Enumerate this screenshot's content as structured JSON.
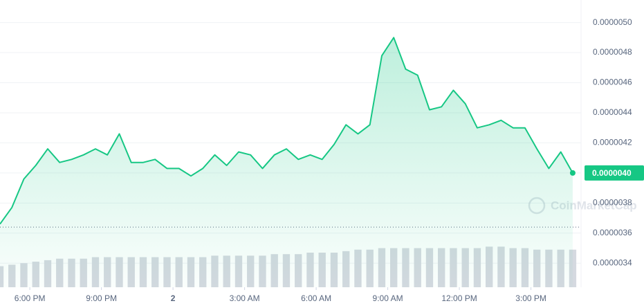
{
  "chart_data": {
    "type": "line",
    "x": [
      16.75,
      17.25,
      17.75,
      18.25,
      18.75,
      19.25,
      19.75,
      20.25,
      20.75,
      21.25,
      21.75,
      22.25,
      22.75,
      23.25,
      23.75,
      24.25,
      24.75,
      25.25,
      25.75,
      26.25,
      26.75,
      27.25,
      27.75,
      28.25,
      28.75,
      29.25,
      29.75,
      30.25,
      30.75,
      31.25,
      31.75,
      32.25,
      32.75,
      33.25,
      33.75,
      34.25,
      34.75,
      35.25,
      35.75,
      36.25,
      36.75,
      37.25,
      37.75,
      38.25,
      38.75,
      39.25,
      39.75,
      40.25,
      40.75
    ],
    "series": [
      {
        "color": "#16c784",
        "values": [
          3.66e-06,
          3.77e-06,
          3.96e-06,
          4.05e-06,
          4.16e-06,
          4.07e-06,
          4.09e-06,
          4.12e-06,
          4.16e-06,
          4.12e-06,
          4.26e-06,
          4.07e-06,
          4.07e-06,
          4.09e-06,
          4.03e-06,
          4.03e-06,
          3.98e-06,
          4.03e-06,
          4.12e-06,
          4.05e-06,
          4.14e-06,
          4.12e-06,
          4.03e-06,
          4.12e-06,
          4.16e-06,
          4.09e-06,
          4.12e-06,
          4.09e-06,
          4.19e-06,
          4.32e-06,
          4.26e-06,
          4.32e-06,
          4.78e-06,
          4.9e-06,
          4.69e-06,
          4.65e-06,
          4.42e-06,
          4.44e-06,
          4.55e-06,
          4.46e-06,
          4.3e-06,
          4.32e-06,
          4.35e-06,
          4.3e-06,
          4.3e-06,
          4.16e-06,
          4.03e-06,
          4.14e-06,
          4e-06
        ]
      }
    ],
    "volume": {
      "color": "#d5d9e0",
      "values": [
        3.38e-06,
        3.39e-06,
        3.4e-06,
        3.41e-06,
        3.42e-06,
        3.43e-06,
        3.43e-06,
        3.43e-06,
        3.44e-06,
        3.44e-06,
        3.44e-06,
        3.44e-06,
        3.44e-06,
        3.44e-06,
        3.44e-06,
        3.44e-06,
        3.44e-06,
        3.44e-06,
        3.45e-06,
        3.45e-06,
        3.45e-06,
        3.45e-06,
        3.45e-06,
        3.46e-06,
        3.46e-06,
        3.46e-06,
        3.47e-06,
        3.47e-06,
        3.47e-06,
        3.48e-06,
        3.49e-06,
        3.49e-06,
        3.5e-06,
        3.5e-06,
        3.5e-06,
        3.5e-06,
        3.5e-06,
        3.5e-06,
        3.5e-06,
        3.5e-06,
        3.5e-06,
        3.51e-06,
        3.51e-06,
        3.5e-06,
        3.5e-06,
        3.49e-06,
        3.49e-06,
        3.49e-06,
        3.49e-06
      ]
    },
    "xlim": [
      16.75,
      41.1
    ],
    "xticks": [
      {
        "value": 18,
        "label": "6:00 PM"
      },
      {
        "value": 21,
        "label": "9:00 PM"
      },
      {
        "value": 24,
        "label": "2"
      },
      {
        "value": 27,
        "label": "3:00 AM"
      },
      {
        "value": 30,
        "label": "6:00 AM"
      },
      {
        "value": 33,
        "label": "9:00 AM"
      },
      {
        "value": 36,
        "label": "12:00 PM"
      },
      {
        "value": 39,
        "label": "3:00 PM"
      }
    ],
    "ylim": [
      3.24e-06,
      5.15e-06
    ],
    "yticks": [
      {
        "value": 3.4e-06,
        "label": "0.0000034"
      },
      {
        "value": 3.6e-06,
        "label": "0.0000036"
      },
      {
        "value": 3.8e-06,
        "label": "0.0000038"
      },
      {
        "value": 4e-06,
        "label": "0.0000040"
      },
      {
        "value": 4.2e-06,
        "label": "0.0000042"
      },
      {
        "value": 4.4e-06,
        "label": "0.0000044"
      },
      {
        "value": 4.6e-06,
        "label": "0.0000046"
      },
      {
        "value": 4.8e-06,
        "label": "0.0000048"
      },
      {
        "value": 5e-06,
        "label": "0.0000050"
      }
    ],
    "reference_line": 3.64e-06,
    "current_price": {
      "value": 4e-06,
      "label": "0.0000040"
    },
    "watermark": "CoinMarketCap",
    "grid": true
  }
}
